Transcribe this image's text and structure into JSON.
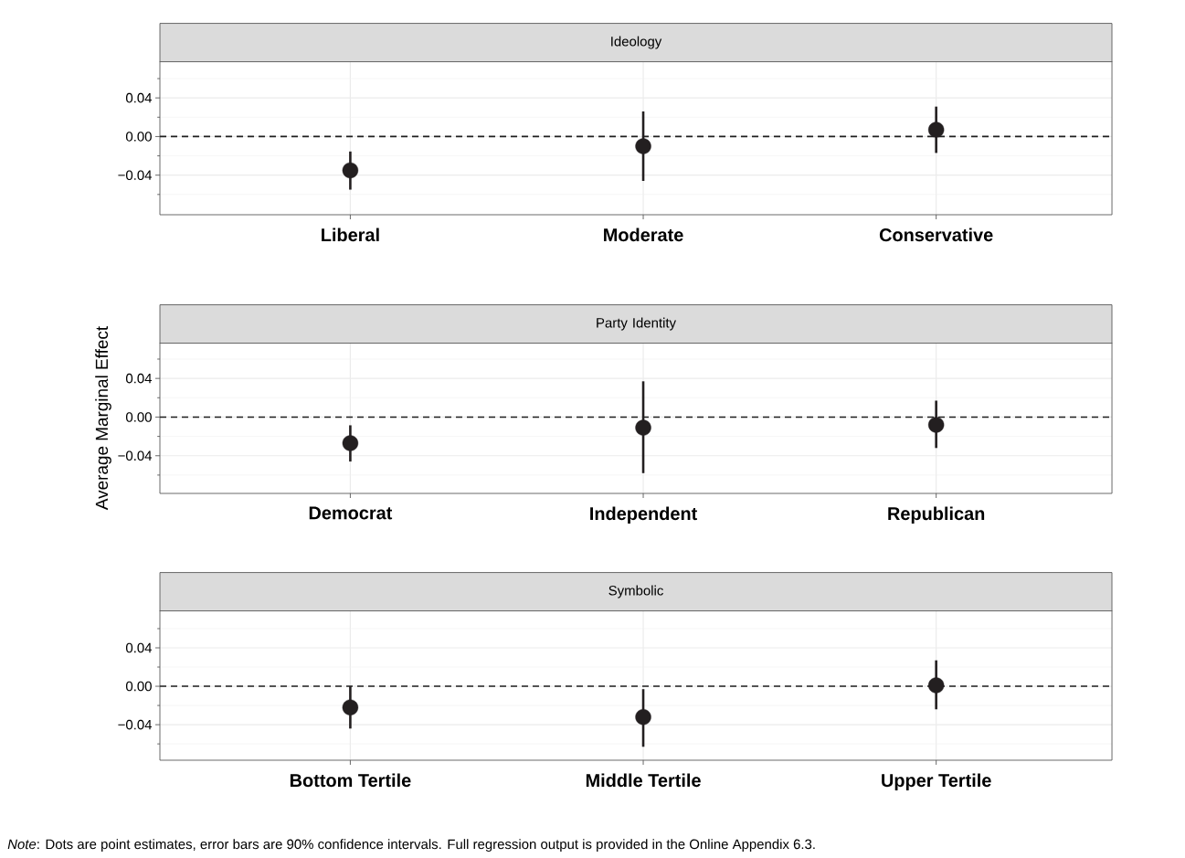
{
  "chart_data": [
    {
      "type": "scatter",
      "title": "Ideology",
      "categories": [
        "Liberal",
        "Moderate",
        "Conservative"
      ],
      "values": [
        -0.035,
        -0.01,
        0.007
      ],
      "errors": [
        [
          -0.055,
          -0.0155
        ],
        [
          -0.046,
          0.026
        ],
        [
          -0.017,
          0.031
        ]
      ],
      "color": "#231f20",
      "ylim": [
        -0.081,
        0.078
      ],
      "yticks": [
        {
          "value": -0.04,
          "label": "−0.04"
        },
        {
          "value": 0,
          "label": "0.00"
        },
        {
          "value": 0.04,
          "label": "0.04"
        }
      ],
      "grid": true,
      "ref_lines": [
        {
          "axis": "y",
          "value": 0,
          "line_style": "dashed"
        }
      ]
    },
    {
      "type": "scatter",
      "title": "Party Identity",
      "ylabel": "Average Marginal Effect",
      "categories": [
        "Democrat",
        "Independent",
        "Republican"
      ],
      "values": [
        -0.027,
        -0.011,
        -0.008
      ],
      "errors": [
        [
          -0.046,
          -0.0085
        ],
        [
          -0.058,
          0.037
        ],
        [
          -0.032,
          0.017
        ]
      ],
      "color": "#231f20",
      "ylim": [
        -0.079,
        0.077
      ],
      "yticks": [
        {
          "value": -0.04,
          "label": "−0.04"
        },
        {
          "value": 0,
          "label": "0.00"
        },
        {
          "value": 0.04,
          "label": "0.04"
        }
      ],
      "grid": true,
      "ref_lines": [
        {
          "axis": "y",
          "value": 0,
          "line_style": "dashed"
        }
      ]
    },
    {
      "type": "scatter",
      "title": "Symbolic",
      "categories": [
        "Bottom Tertile",
        "Middle Tertile",
        "Upper Tertile"
      ],
      "values": [
        -0.022,
        -0.032,
        0.001
      ],
      "errors": [
        [
          -0.044,
          0.0
        ],
        [
          -0.063,
          -0.003
        ],
        [
          -0.024,
          0.027
        ]
      ],
      "color": "#231f20",
      "ylim": [
        -0.077,
        0.079
      ],
      "yticks": [
        {
          "value": -0.04,
          "label": "−0.04"
        },
        {
          "value": 0,
          "label": "0.00"
        },
        {
          "value": 0.04,
          "label": "0.04"
        }
      ],
      "grid": true,
      "ref_lines": [
        {
          "axis": "y",
          "value": 0,
          "line_style": "dashed"
        }
      ],
      "annotations": [
        "*Note*: Dots are point estimates, error bars are 90% confidence intervals. Full regression output is provided in the Online Appendix 6.3."
      ]
    }
  ]
}
